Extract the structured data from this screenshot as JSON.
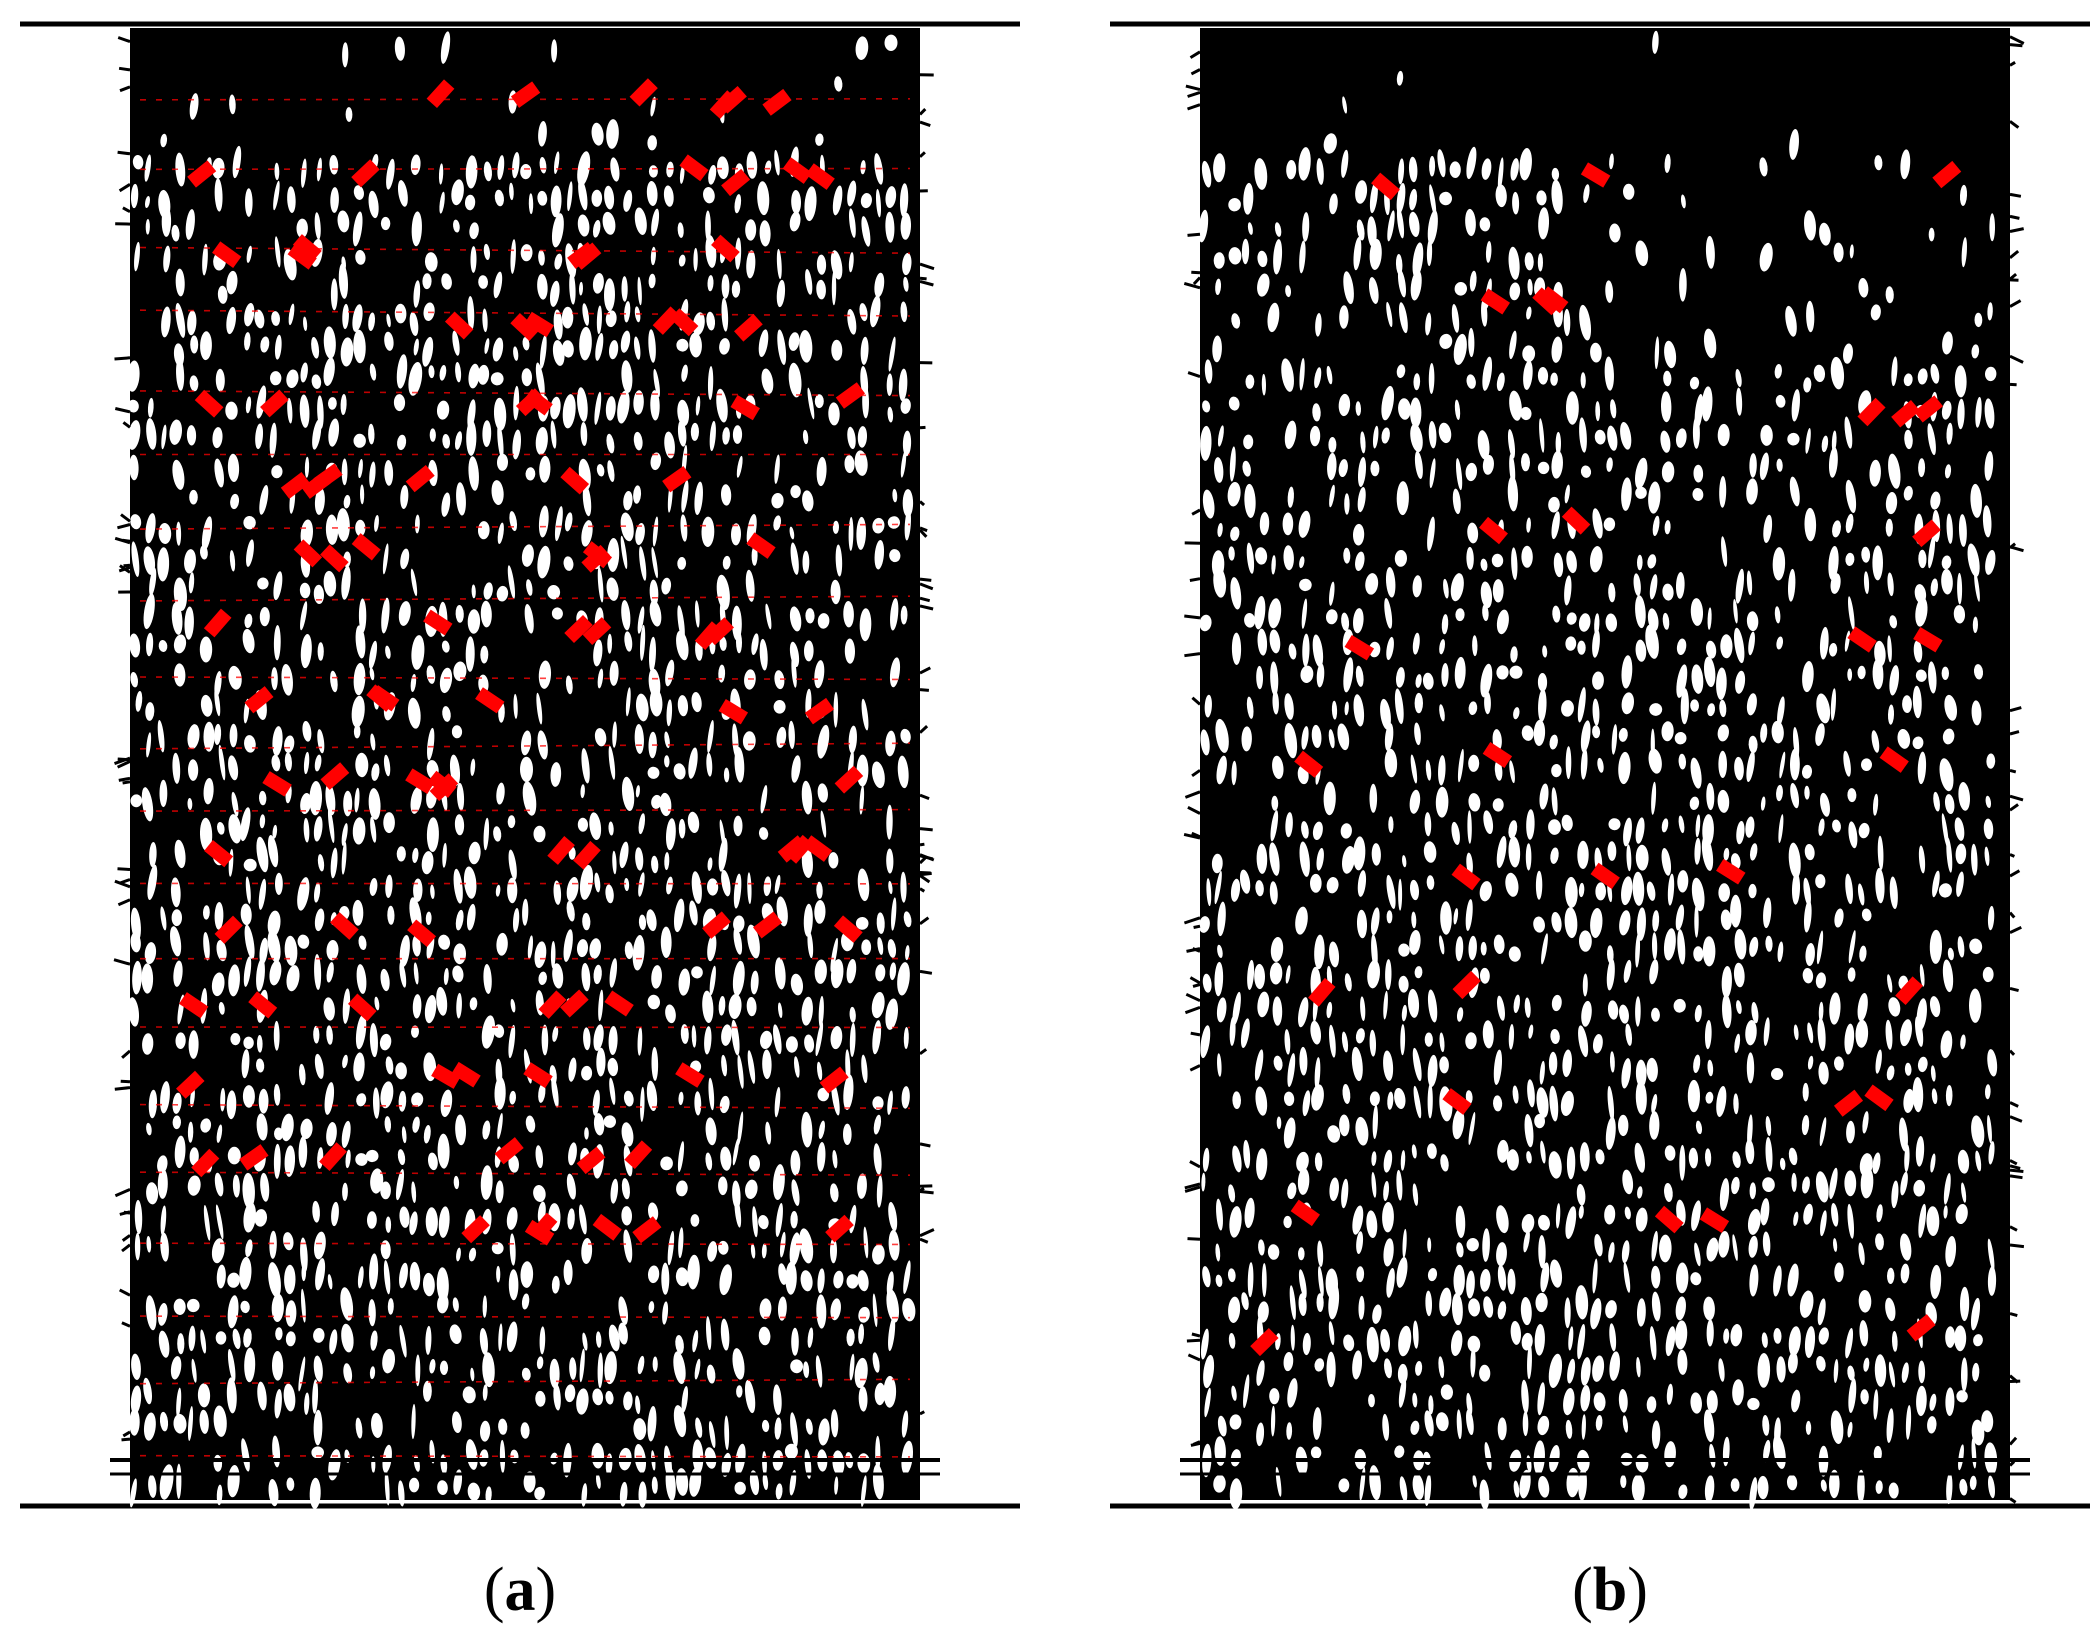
{
  "panels": [
    {
      "id": "a",
      "caption": {
        "open": "(",
        "label": "a",
        "close": ")"
      },
      "marker_color": "#ff0000",
      "crack_color": "#000000",
      "marker_count": 96
    },
    {
      "id": "b",
      "caption": {
        "open": "(",
        "label": "b",
        "close": ")"
      },
      "marker_color": "#ff0000",
      "crack_color": "#000000",
      "marker_count": 32
    }
  ]
}
